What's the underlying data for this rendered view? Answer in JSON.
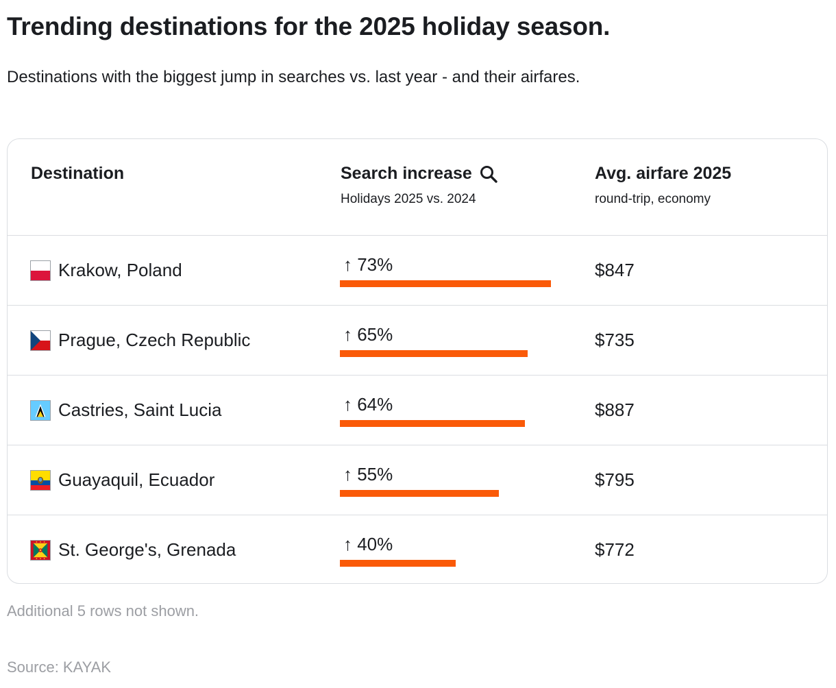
{
  "title": "Trending destinations for the 2025 holiday season.",
  "subtitle": "Destinations with the biggest jump in searches vs. last year - and their airfares.",
  "accent_color": "#fa5a08",
  "table": {
    "headers": {
      "destination": "Destination",
      "search_increase": "Search increase",
      "search_increase_sub": "Holidays 2025 vs. 2024",
      "search_icon": "search-icon",
      "airfare": "Avg. airfare 2025",
      "airfare_sub": "round-trip, economy"
    },
    "rows": [
      {
        "destination": "Krakow, Poland",
        "flag": "poland-flag-icon",
        "increase_label": "↑ 73%",
        "increase": 73,
        "airfare": "$847"
      },
      {
        "destination": "Prague, Czech Republic",
        "flag": "czech-flag-icon",
        "increase_label": "↑ 65%",
        "increase": 65,
        "airfare": "$735"
      },
      {
        "destination": "Castries, Saint Lucia",
        "flag": "saint-lucia-flag-icon",
        "increase_label": "↑ 64%",
        "increase": 64,
        "airfare": "$887"
      },
      {
        "destination": "Guayaquil, Ecuador",
        "flag": "ecuador-flag-icon",
        "increase_label": "↑ 55%",
        "increase": 55,
        "airfare": "$795"
      },
      {
        "destination": "St. George's, Grenada",
        "flag": "grenada-flag-icon",
        "increase_label": "↑ 40%",
        "increase": 40,
        "airfare": "$772"
      }
    ]
  },
  "note": "Additional 5 rows not shown.",
  "source": "Source: KAYAK"
}
